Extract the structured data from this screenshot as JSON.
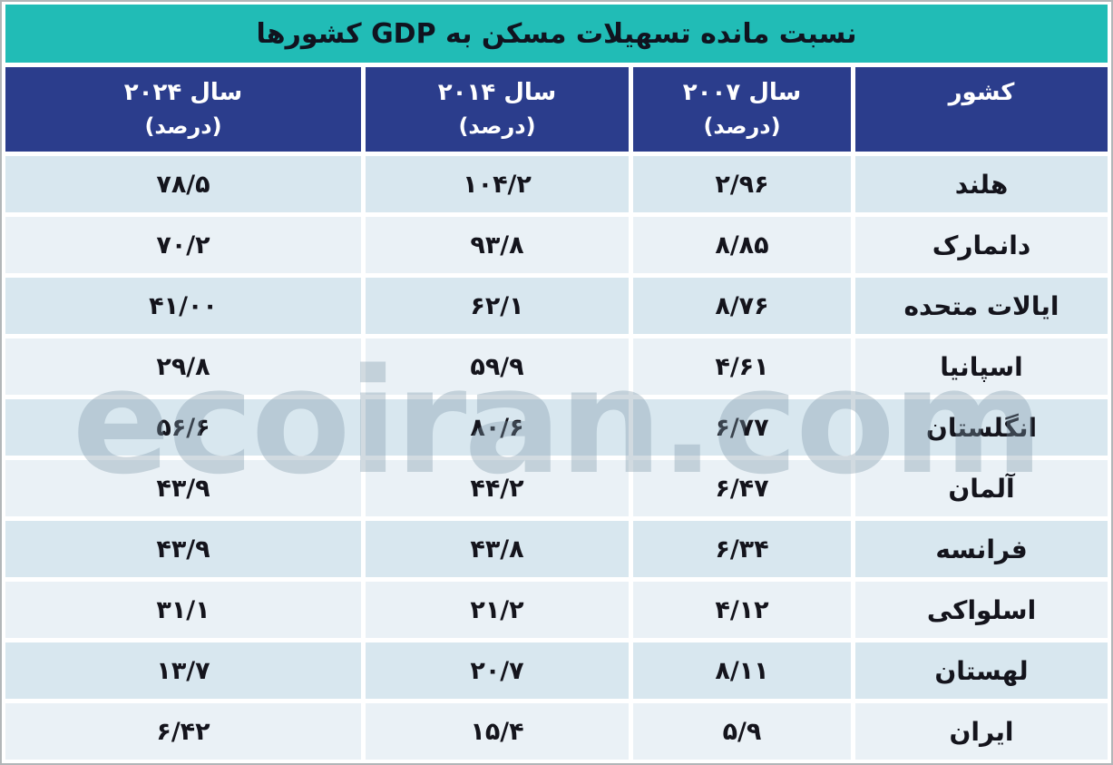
{
  "title": "نسبت مانده تسهیلات مسکن به GDP کشورها",
  "watermark": "ecoiran.com",
  "colors": {
    "title_bar": "#21bcb6",
    "header_bar": "#2b3d8c",
    "row_stripe_dark": "#d8e7ef",
    "row_stripe_light": "#eaf1f6",
    "outer_border": "#b2b6b8",
    "header_text": "#ffffff",
    "body_text": "#14141c"
  },
  "header": {
    "cols": [
      {
        "line1": "کشور",
        "line2": ""
      },
      {
        "line1": "سال ۲۰۰۷",
        "line2": "(درصد)"
      },
      {
        "line1": "سال ۲۰۱۴",
        "line2": "(درصد)"
      },
      {
        "line1": "سال ۲۰۲۴",
        "line2": "(درصد)"
      }
    ]
  },
  "table": {
    "rows": [
      {
        "country": "هلند",
        "y2007": "۲/۹۶",
        "y2014": "۱۰۴/۲",
        "y2024": "۷۸/۵"
      },
      {
        "country": "دانمارک",
        "y2007": "۸/۸۵",
        "y2014": "۹۳/۸",
        "y2024": "۷۰/۲"
      },
      {
        "country": "ایالات متحده",
        "y2007": "۸/۷۶",
        "y2014": "۶۲/۱",
        "y2024": "۴۱/۰۰"
      },
      {
        "country": "اسپانیا",
        "y2007": "۴/۶۱",
        "y2014": "۵۹/۹",
        "y2024": "۲۹/۸"
      },
      {
        "country": "انگلستان",
        "y2007": "۶/۷۷",
        "y2014": "۸۰/۶",
        "y2024": "۵۶/۶"
      },
      {
        "country": "آلمان",
        "y2007": "۶/۴۷",
        "y2014": "۴۴/۲",
        "y2024": "۴۳/۹"
      },
      {
        "country": "فرانسه",
        "y2007": "۶/۳۴",
        "y2014": "۴۳/۸",
        "y2024": "۴۳/۹"
      },
      {
        "country": "اسلواکی",
        "y2007": "۴/۱۲",
        "y2014": "۲۱/۲",
        "y2024": "۳۱/۱"
      },
      {
        "country": "لهستان",
        "y2007": "۸/۱۱",
        "y2014": "۲۰/۷",
        "y2024": "۱۳/۷"
      },
      {
        "country": "ایران",
        "y2007": "۵/۹",
        "y2014": "۱۵/۴",
        "y2024": "۶/۴۲"
      }
    ]
  },
  "chart_data": {
    "type": "table",
    "title": "نسبت مانده تسهیلات مسکن به GDP کشورها",
    "columns": [
      "کشور",
      "سال ۲۰۰۷ (درصد)",
      "سال ۲۰۱۴ (درصد)",
      "سال ۲۰۲۴ (درصد)"
    ],
    "categories": [
      "هلند",
      "دانمارک",
      "ایالات متحده",
      "اسپانیا",
      "انگلستان",
      "آلمان",
      "فرانسه",
      "اسلواکی",
      "لهستان",
      "ایران"
    ],
    "series": [
      {
        "name": "سال ۲۰۰۷ (درصد)",
        "values": [
          2.96,
          8.85,
          8.76,
          4.61,
          6.77,
          6.47,
          6.34,
          4.12,
          8.11,
          5.9
        ]
      },
      {
        "name": "سال ۲۰۱۴ (درصد)",
        "values": [
          104.2,
          93.8,
          62.1,
          59.9,
          80.6,
          44.2,
          43.8,
          21.2,
          20.7,
          15.4
        ]
      },
      {
        "name": "سال ۲۰۲۴ (درصد)",
        "values": [
          78.5,
          70.2,
          41.0,
          29.8,
          56.6,
          43.9,
          43.9,
          31.1,
          13.7,
          6.42
        ]
      }
    ]
  }
}
